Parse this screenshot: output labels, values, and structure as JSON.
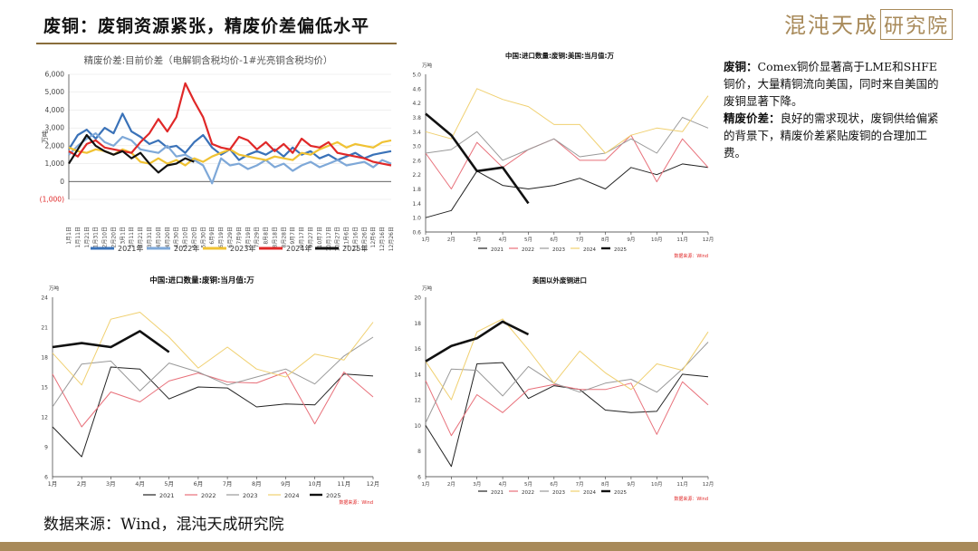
{
  "header": {
    "title": "废铜：废铜资源紧张，精废价差偏低水平",
    "logo_text": "混沌天成",
    "logo_box": "研究院"
  },
  "note": {
    "p1_label": "废铜：",
    "p1_text": "Comex铜价显著高于LME和SHFE铜价，大量精铜流向美国，同时来自美国的废铜显著下降。",
    "p2_label": "精废价差：",
    "p2_text": "良好的需求现状，废铜供给偏紧的背景下，精废价差紧贴废铜的合理加工费。"
  },
  "footer": {
    "source": "数据来源：Wind，混沌天成研究院"
  },
  "colors": {
    "accent": "#a88a5a",
    "s2021": "#3a72b8",
    "s2022": "#7ea8d8",
    "s2023": "#f0c233",
    "s2024": "#e02828",
    "s2025": "#111111"
  },
  "chart_data": [
    {
      "type": "line",
      "title": "精废价差:目前价差（电解铜含税均价-1#光亮铜含税均价）",
      "ylabel": "万吨",
      "ylim": [
        -1000,
        6000
      ],
      "yticks": [
        "6,000",
        "5,000",
        "4,000",
        "3,000",
        "2,000",
        "1,000",
        "0",
        "(1,000)"
      ],
      "categories": [
        "1月1日",
        "1月11日",
        "1月21日",
        "1月31日",
        "2月10日",
        "2月20日",
        "3月1日",
        "3月11日",
        "3月21日",
        "3月31日",
        "4月10日",
        "4月20日",
        "4月30日",
        "5月10日",
        "5月20日",
        "5月30日",
        "6月9日",
        "6月19日",
        "6月29日",
        "7月9日",
        "7月19日",
        "7月29日",
        "8月8日",
        "8月18日",
        "8月28日",
        "9月7日",
        "9月17日",
        "9月27日",
        "10月7日",
        "10月17日",
        "10月27日",
        "11月6日",
        "11月16日",
        "11月26日",
        "12月6日",
        "12月16日",
        "12月26日"
      ],
      "series": [
        {
          "name": "2021年",
          "color": "#3a72b8",
          "values": [
            1800,
            2600,
            2900,
            2400,
            3000,
            2700,
            3800,
            2800,
            2500,
            2100,
            2300,
            1900,
            2000,
            1600,
            2200,
            2600,
            1900,
            1500,
            1800,
            1200,
            1500,
            1700,
            1500,
            1800,
            1400,
            1900,
            1500,
            1700,
            1300,
            1500,
            1200,
            1400,
            1600,
            1300,
            1500,
            1600,
            1700
          ]
        },
        {
          "name": "2022年",
          "color": "#7ea8d8",
          "values": [
            1500,
            2000,
            2400,
            2700,
            2200,
            2000,
            2500,
            2300,
            1800,
            1700,
            1600,
            2000,
            1400,
            1500,
            1200,
            900,
            -100,
            1300,
            900,
            1000,
            700,
            900,
            1200,
            800,
            1000,
            600,
            900,
            1100,
            800,
            1000,
            1200,
            900,
            1000,
            1100,
            800,
            1200,
            1000
          ]
        },
        {
          "name": "2023年",
          "color": "#f0c233",
          "values": [
            1900,
            1700,
            1600,
            1800,
            1700,
            1500,
            1800,
            1600,
            1100,
            1000,
            1300,
            1000,
            1200,
            900,
            1300,
            1100,
            1400,
            1600,
            1800,
            1500,
            1400,
            1300,
            1200,
            1400,
            1300,
            1200,
            1600,
            1500,
            1800,
            2000,
            2200,
            1900,
            2100,
            2000,
            1900,
            2200,
            2300
          ]
        },
        {
          "name": "2024年",
          "color": "#e02828",
          "values": [
            1700,
            1400,
            2100,
            2300,
            1900,
            1800,
            1700,
            1600,
            2200,
            2700,
            3500,
            2800,
            3600,
            5500,
            4500,
            3600,
            2100,
            1900,
            1800,
            2500,
            2300,
            1800,
            2200,
            1700,
            2100,
            1600,
            2400,
            2000,
            1900,
            2200,
            1600,
            1500,
            1400,
            1300,
            1100,
            1000,
            900
          ]
        },
        {
          "name": "2025年",
          "color": "#111111",
          "values": [
            1000,
            1800,
            2600,
            2000,
            1700,
            1500,
            1700,
            1300,
            1600,
            1000,
            500,
            900,
            1000,
            1300,
            1100,
            null,
            null,
            null,
            null,
            null,
            null,
            null,
            null,
            null,
            null,
            null,
            null,
            null,
            null,
            null,
            null,
            null,
            null,
            null,
            null,
            null,
            null
          ]
        }
      ]
    },
    {
      "type": "line",
      "title": "中国:进口数量:废铜:美国:当月值:万",
      "ylabel": "万吨",
      "ylim": [
        0.6,
        5.0
      ],
      "yticks": [
        "5.0",
        "4.6",
        "4.2",
        "3.8",
        "3.4",
        "3.0",
        "2.6",
        "2.2",
        "1.8",
        "1.4",
        "1.0",
        "0.6"
      ],
      "categories": [
        "1月",
        "2月",
        "3月",
        "4月",
        "5月",
        "6月",
        "7月",
        "8月",
        "9月",
        "10月",
        "11月",
        "12月"
      ],
      "source": "数据来源：Wind",
      "series": [
        {
          "name": "2021",
          "color": "#222222",
          "values": [
            1.0,
            1.2,
            2.3,
            1.9,
            1.8,
            1.9,
            2.1,
            1.8,
            2.4,
            2.2,
            2.5,
            2.4
          ]
        },
        {
          "name": "2022",
          "color": "#e8707a",
          "values": [
            2.8,
            1.8,
            3.1,
            2.4,
            2.9,
            3.2,
            2.6,
            2.6,
            3.3,
            2.0,
            3.2,
            2.4
          ]
        },
        {
          "name": "2023",
          "color": "#999999",
          "values": [
            2.8,
            2.9,
            3.4,
            2.6,
            2.9,
            3.2,
            2.7,
            2.8,
            3.2,
            2.8,
            3.8,
            3.5
          ]
        },
        {
          "name": "2024",
          "color": "#f0d070",
          "values": [
            3.4,
            3.2,
            4.6,
            4.3,
            4.1,
            3.6,
            3.6,
            2.8,
            3.3,
            3.5,
            3.4,
            4.4
          ]
        },
        {
          "name": "2025",
          "color": "#111111",
          "values": [
            3.9,
            3.3,
            2.3,
            2.4,
            1.4,
            null,
            null,
            null,
            null,
            null,
            null,
            null
          ]
        }
      ]
    },
    {
      "type": "line",
      "title": "中国:进口数量:废铜:当月值:万",
      "ylabel": "万吨",
      "ylim": [
        6,
        24
      ],
      "yticks": [
        "24",
        "21",
        "18",
        "15",
        "12",
        "9",
        "6"
      ],
      "categories": [
        "1月",
        "2月",
        "3月",
        "4月",
        "5月",
        "6月",
        "7月",
        "8月",
        "9月",
        "10月",
        "11月",
        "12月"
      ],
      "source": "数据来源：Wind",
      "series": [
        {
          "name": "2021",
          "color": "#222222",
          "values": [
            11.0,
            8.0,
            17.0,
            16.8,
            13.8,
            15.0,
            14.9,
            13.0,
            13.3,
            13.2,
            16.3,
            16.1
          ]
        },
        {
          "name": "2022",
          "color": "#e8707a",
          "values": [
            16.3,
            11.0,
            14.5,
            13.5,
            15.6,
            16.4,
            15.5,
            15.4,
            16.5,
            11.3,
            16.5,
            14.0
          ]
        },
        {
          "name": "2023",
          "color": "#999999",
          "values": [
            13.0,
            17.3,
            17.6,
            14.6,
            17.4,
            16.5,
            15.2,
            16.0,
            16.8,
            15.3,
            18.1,
            20.0
          ]
        },
        {
          "name": "2024",
          "color": "#f0d070",
          "values": [
            18.4,
            15.2,
            21.8,
            22.5,
            20.0,
            16.9,
            19.0,
            16.8,
            16.0,
            18.3,
            17.7,
            21.5
          ]
        },
        {
          "name": "2025",
          "color": "#111111",
          "values": [
            19.0,
            19.4,
            19.0,
            20.6,
            18.5,
            null,
            null,
            null,
            null,
            null,
            null,
            null
          ]
        }
      ]
    },
    {
      "type": "line",
      "title": "美国以外废铜进口",
      "ylabel": "万吨",
      "ylim": [
        6,
        20
      ],
      "yticks": [
        "20",
        "18",
        "16",
        "14",
        "12",
        "10",
        "8",
        "6"
      ],
      "categories": [
        "1月",
        "2月",
        "3月",
        "4月",
        "5月",
        "6月",
        "7月",
        "8月",
        "9月",
        "10月",
        "11月",
        "12月"
      ],
      "source": "数据来源：Wind",
      "series": [
        {
          "name": "2021",
          "color": "#222222",
          "values": [
            10.0,
            6.8,
            14.8,
            14.9,
            12.1,
            13.1,
            12.8,
            11.2,
            11.0,
            11.1,
            14.0,
            13.8
          ]
        },
        {
          "name": "2022",
          "color": "#e8707a",
          "values": [
            13.5,
            9.2,
            12.4,
            11.0,
            12.8,
            13.2,
            12.8,
            12.8,
            13.3,
            9.3,
            13.4,
            11.6
          ]
        },
        {
          "name": "2023",
          "color": "#999999",
          "values": [
            10.2,
            14.4,
            14.3,
            12.3,
            14.6,
            13.3,
            12.6,
            13.3,
            13.6,
            12.6,
            14.4,
            16.5
          ]
        },
        {
          "name": "2024",
          "color": "#f0d070",
          "values": [
            15.0,
            12.0,
            17.3,
            18.3,
            15.9,
            13.3,
            15.8,
            14.1,
            12.8,
            14.8,
            14.3,
            17.3
          ]
        },
        {
          "name": "2025",
          "color": "#111111",
          "values": [
            15.0,
            16.2,
            16.8,
            18.1,
            17.1,
            null,
            null,
            null,
            null,
            null,
            null,
            null
          ]
        }
      ]
    }
  ]
}
